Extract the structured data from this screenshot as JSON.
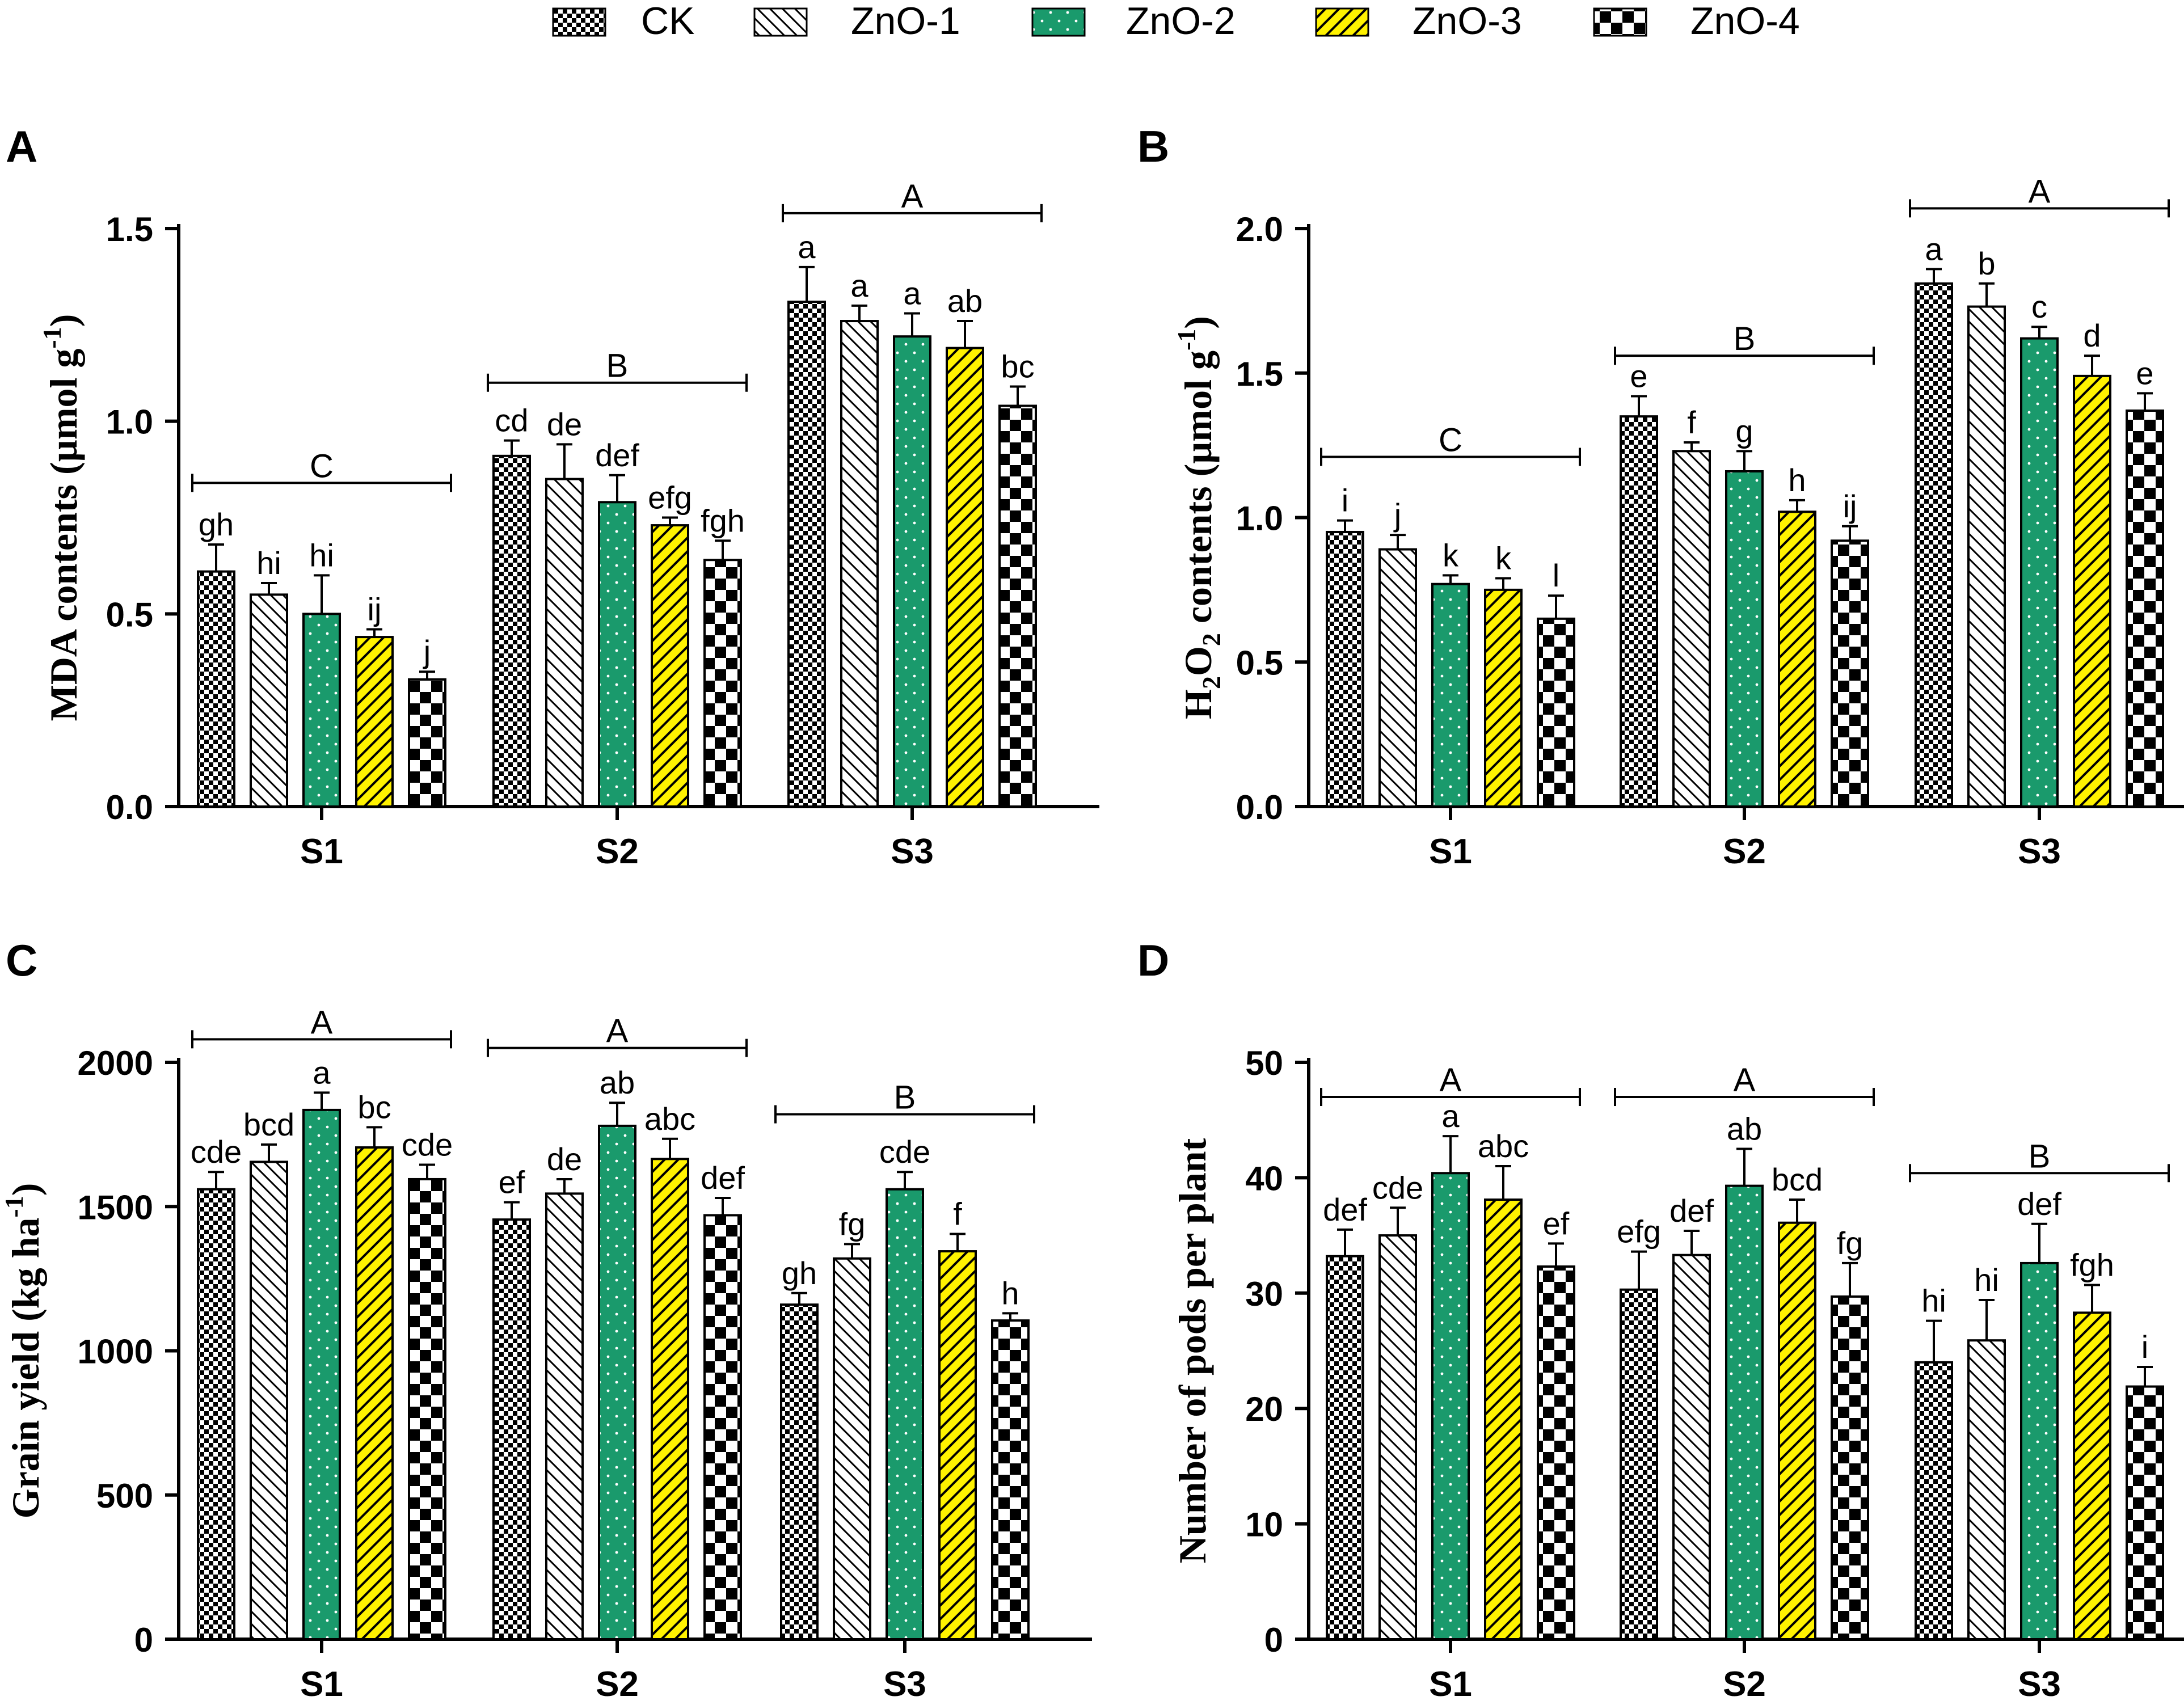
{
  "legend": {
    "items": [
      {
        "name": "CK",
        "pattern": "check"
      },
      {
        "name": "ZnO-1",
        "pattern": "hatch"
      },
      {
        "name": "ZnO-2",
        "pattern": "dots"
      },
      {
        "name": "ZnO-3",
        "pattern": "yellow"
      },
      {
        "name": "ZnO-4",
        "pattern": "bigcheck"
      }
    ]
  },
  "colors": {
    "zno2_fill": "#1a9a6c",
    "zno3_fill": "#fff200",
    "axis": "#000000"
  },
  "chart_data": [
    {
      "panel": "A",
      "type": "bar",
      "ylabel": "MDA contents (µmol g⁻¹)",
      "ylabel_text": "MDA contents (µmol g",
      "ylabel_sup": "-1",
      "ylabel_end": ")",
      "ylim": [
        0,
        1.5
      ],
      "yticks": [
        "0.0",
        "0.5",
        "1.0",
        "1.5"
      ],
      "ytick_values": [
        0,
        0.5,
        1.0,
        1.5
      ],
      "categories": [
        "S1",
        "S2",
        "S3"
      ],
      "series": [
        {
          "name": "CK",
          "values": [
            0.61,
            0.91,
            1.31
          ],
          "errors": [
            0.07,
            0.04,
            0.09
          ],
          "letters": [
            "gh",
            "cd",
            "a"
          ]
        },
        {
          "name": "ZnO-1",
          "values": [
            0.55,
            0.85,
            1.26
          ],
          "errors": [
            0.03,
            0.09,
            0.04
          ],
          "letters": [
            "hi",
            "de",
            "a"
          ]
        },
        {
          "name": "ZnO-2",
          "values": [
            0.5,
            0.79,
            1.22
          ],
          "errors": [
            0.1,
            0.07,
            0.06
          ],
          "letters": [
            "hi",
            "def",
            "a"
          ]
        },
        {
          "name": "ZnO-3",
          "values": [
            0.44,
            0.73,
            1.19
          ],
          "errors": [
            0.02,
            0.02,
            0.07
          ],
          "letters": [
            "ij",
            "efg",
            "ab"
          ]
        },
        {
          "name": "ZnO-4",
          "values": [
            0.33,
            0.64,
            1.04
          ],
          "errors": [
            0.02,
            0.05,
            0.05
          ],
          "letters": [
            "j",
            "fgh",
            "bc"
          ]
        }
      ],
      "group_letters": [
        "C",
        "B",
        "A"
      ],
      "group_bar_values": [
        0.84,
        1.1,
        1.54
      ]
    },
    {
      "panel": "B",
      "type": "bar",
      "ylabel": "H₂O₂ contents (µmol g⁻¹)",
      "ylabel_text": "H",
      "ylabel_sub1": "2",
      "ylabel_mid": "O",
      "ylabel_sub2": "2",
      "ylabel_rest": " contents (µmol g",
      "ylabel_sup": "-1",
      "ylabel_end": ")",
      "ylim": [
        0,
        2.0
      ],
      "yticks": [
        "0.0",
        "0.5",
        "1.0",
        "1.5",
        "2.0"
      ],
      "ytick_values": [
        0,
        0.5,
        1.0,
        1.5,
        2.0
      ],
      "categories": [
        "S1",
        "S2",
        "S3"
      ],
      "series": [
        {
          "name": "CK",
          "values": [
            0.95,
            1.35,
            1.81
          ],
          "errors": [
            0.04,
            0.07,
            0.05
          ],
          "letters": [
            "i",
            "e",
            "a"
          ]
        },
        {
          "name": "ZnO-1",
          "values": [
            0.89,
            1.23,
            1.73
          ],
          "errors": [
            0.05,
            0.03,
            0.08
          ],
          "letters": [
            "j",
            "f",
            "b"
          ]
        },
        {
          "name": "ZnO-2",
          "values": [
            0.77,
            1.16,
            1.62
          ],
          "errors": [
            0.03,
            0.07,
            0.04
          ],
          "letters": [
            "k",
            "g",
            "c"
          ]
        },
        {
          "name": "ZnO-3",
          "values": [
            0.75,
            1.02,
            1.49
          ],
          "errors": [
            0.04,
            0.04,
            0.07
          ],
          "letters": [
            "k",
            "h",
            "d"
          ]
        },
        {
          "name": "ZnO-4",
          "values": [
            0.65,
            0.92,
            1.37
          ],
          "errors": [
            0.08,
            0.05,
            0.06
          ],
          "letters": [
            "l",
            "ij",
            "e"
          ]
        }
      ],
      "group_letters": [
        "C",
        "B",
        "A"
      ],
      "group_bar_values": [
        1.21,
        1.56,
        2.07
      ]
    },
    {
      "panel": "C",
      "type": "bar",
      "ylabel": "Grain yield (kg ha⁻¹)",
      "ylabel_text": "Grain yield (kg ha",
      "ylabel_sup": "-1",
      "ylabel_end": ")",
      "ylim": [
        0,
        2000
      ],
      "yticks": [
        "0",
        "500",
        "1000",
        "1500",
        "2000"
      ],
      "ytick_values": [
        0,
        500,
        1000,
        1500,
        2000
      ],
      "categories": [
        "S1",
        "S2",
        "S3"
      ],
      "series": [
        {
          "name": "CK",
          "values": [
            1560,
            1455,
            1160
          ],
          "errors": [
            60,
            60,
            40
          ],
          "letters": [
            "cde",
            "ef",
            "gh"
          ]
        },
        {
          "name": "ZnO-1",
          "values": [
            1655,
            1545,
            1320
          ],
          "errors": [
            60,
            50,
            50
          ],
          "letters": [
            "bcd",
            "de",
            "fg"
          ]
        },
        {
          "name": "ZnO-2",
          "values": [
            1835,
            1780,
            1560
          ],
          "errors": [
            60,
            80,
            60
          ],
          "letters": [
            "a",
            "ab",
            "cde"
          ]
        },
        {
          "name": "ZnO-3",
          "values": [
            1705,
            1665,
            1345
          ],
          "errors": [
            70,
            70,
            60
          ],
          "letters": [
            "bc",
            "abc",
            "f"
          ]
        },
        {
          "name": "ZnO-4",
          "values": [
            1595,
            1470,
            1105
          ],
          "errors": [
            50,
            60,
            25
          ],
          "letters": [
            "cde",
            "def",
            "h"
          ]
        }
      ],
      "group_letters": [
        "A",
        "A",
        "B"
      ],
      "group_bar_values": [
        2080,
        2050,
        1820
      ]
    },
    {
      "panel": "D",
      "type": "bar",
      "ylabel": "Number of pods per plant",
      "ylim": [
        0,
        50
      ],
      "yticks": [
        "0",
        "10",
        "20",
        "30",
        "40",
        "50"
      ],
      "ytick_values": [
        0,
        10,
        20,
        30,
        40,
        50
      ],
      "categories": [
        "S1",
        "S2",
        "S3"
      ],
      "series": [
        {
          "name": "CK",
          "values": [
            33.2,
            30.3,
            24.0
          ],
          "errors": [
            2.3,
            3.3,
            3.6
          ],
          "letters": [
            "def",
            "efg",
            "hi"
          ]
        },
        {
          "name": "ZnO-1",
          "values": [
            35.0,
            33.3,
            25.9
          ],
          "errors": [
            2.4,
            2.1,
            3.5
          ],
          "letters": [
            "cde",
            "def",
            "hi"
          ]
        },
        {
          "name": "ZnO-2",
          "values": [
            40.4,
            39.3,
            32.6
          ],
          "errors": [
            3.2,
            3.2,
            3.4
          ],
          "letters": [
            "a",
            "ab",
            "def"
          ]
        },
        {
          "name": "ZnO-3",
          "values": [
            38.1,
            36.1,
            28.3
          ],
          "errors": [
            2.9,
            2.0,
            2.4
          ],
          "letters": [
            "abc",
            "bcd",
            "fgh"
          ]
        },
        {
          "name": "ZnO-4",
          "values": [
            32.3,
            29.7,
            21.9
          ],
          "errors": [
            2.0,
            2.9,
            1.7
          ],
          "letters": [
            "ef",
            "fg",
            "i"
          ]
        }
      ],
      "group_letters": [
        "A",
        "A",
        "B"
      ],
      "group_bar_values": [
        47.0,
        47.0,
        40.4
      ]
    }
  ]
}
